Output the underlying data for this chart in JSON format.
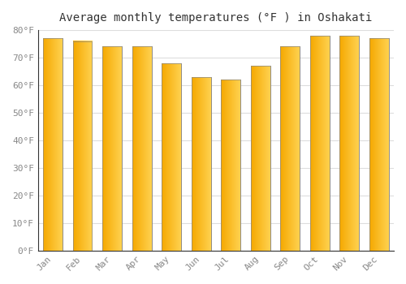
{
  "title": "Average monthly temperatures (°F ) in Oshakati",
  "months": [
    "Jan",
    "Feb",
    "Mar",
    "Apr",
    "May",
    "Jun",
    "Jul",
    "Aug",
    "Sep",
    "Oct",
    "Nov",
    "Dec"
  ],
  "values": [
    77,
    76,
    74,
    74,
    68,
    63,
    62,
    67,
    74,
    78,
    78,
    77
  ],
  "bar_color_left": "#F5A800",
  "bar_color_right": "#FFD966",
  "bar_edge_color": "#888888",
  "ylim": [
    0,
    80
  ],
  "yticks": [
    0,
    10,
    20,
    30,
    40,
    50,
    60,
    70,
    80
  ],
  "ytick_labels": [
    "0°F",
    "10°F",
    "20°F",
    "30°F",
    "40°F",
    "50°F",
    "60°F",
    "70°F",
    "80°F"
  ],
  "background_color": "#FFFFFF",
  "grid_color": "#DDDDDD",
  "title_fontsize": 10,
  "tick_fontsize": 8,
  "tick_color": "#888888",
  "font_family": "monospace",
  "bar_width": 0.65
}
